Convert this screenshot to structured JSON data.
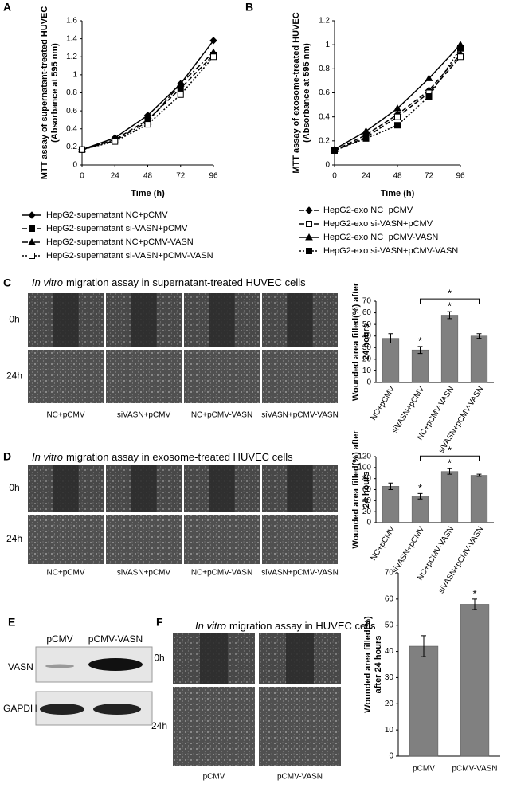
{
  "chart_data": [
    {
      "type": "line",
      "panel": "A",
      "xlabel": "Time (h)",
      "ylabel": [
        "MTT assay of supernatant-treated HUVEC",
        "(Absorbance at 595 nm)"
      ],
      "x": [
        0,
        24,
        48,
        72,
        96
      ],
      "xlim": [
        0,
        96
      ],
      "xticks": [
        0,
        24,
        48,
        72,
        96
      ],
      "ylim": [
        0,
        1.6
      ],
      "yticks": [
        0,
        0.2,
        0.4,
        0.6,
        0.8,
        1,
        1.2,
        1.4,
        1.6
      ],
      "series": [
        {
          "name": "HepG2-supernatant  NC+pCMV",
          "color": "#000000",
          "marker": "diamond",
          "line": "solid",
          "values": [
            0.17,
            0.3,
            0.55,
            0.9,
            1.38
          ]
        },
        {
          "name": "HepG2-supernatant  si-VASN+pCMV",
          "color": "#000000",
          "marker": "square",
          "line": "dashed",
          "values": [
            0.17,
            0.28,
            0.5,
            0.85,
            1.22
          ]
        },
        {
          "name": "HepG2-supernatant  NC+pCMV-VASN",
          "color": "#000000",
          "marker": "triangle",
          "line": "dashdot",
          "values": [
            0.17,
            0.27,
            0.48,
            0.9,
            1.25
          ]
        },
        {
          "name": "HepG2-supernatant  si-VASN+pCMV-VASN",
          "color": "#000000",
          "marker": "open-square",
          "line": "dotted",
          "values": [
            0.17,
            0.26,
            0.45,
            0.78,
            1.2
          ]
        }
      ]
    },
    {
      "type": "line",
      "panel": "B",
      "xlabel": "Time (h)",
      "ylabel": [
        "MTT assay of exosome-treated HUVEC",
        "(Absorbance at 595 nm)"
      ],
      "x": [
        0,
        24,
        48,
        72,
        96
      ],
      "xlim": [
        0,
        96
      ],
      "xticks": [
        0,
        24,
        48,
        72,
        96
      ],
      "ylim": [
        0,
        1.2
      ],
      "yticks": [
        0,
        0.2,
        0.4,
        0.6,
        0.8,
        1,
        1.2
      ],
      "series": [
        {
          "name": "HepG2-exo  NC+pCMV",
          "color": "#000000",
          "marker": "diamond",
          "line": "dashed",
          "values": [
            0.12,
            0.25,
            0.42,
            0.62,
            0.92
          ]
        },
        {
          "name": "HepG2-exo  si-VASN+pCMV",
          "color": "#000000",
          "marker": "open-square",
          "line": "dashed",
          "values": [
            0.12,
            0.23,
            0.4,
            0.6,
            0.9
          ]
        },
        {
          "name": "HepG2-exo  NC+pCMV-VASN",
          "color": "#000000",
          "marker": "triangle",
          "line": "solid",
          "values": [
            0.13,
            0.28,
            0.47,
            0.72,
            1.0
          ]
        },
        {
          "name": "HepG2-exo  si-VASN+pCMV-VASN",
          "color": "#000000",
          "marker": "square",
          "line": "dotted",
          "values": [
            0.12,
            0.22,
            0.33,
            0.57,
            0.97
          ]
        }
      ]
    },
    {
      "type": "bar",
      "ylabel": [
        "Wounded area filled(%) after",
        "24 hours"
      ],
      "color": "#808080",
      "categories": [
        "NC+pCMV",
        "siVASN+pCMV",
        "NC+pCMV-VASN",
        "siVASN+pCMV-VASN"
      ],
      "values": [
        38,
        28,
        58,
        40
      ],
      "errors": [
        4,
        3,
        3,
        2
      ],
      "ylim": [
        0,
        70
      ],
      "yticks": [
        0,
        10,
        20,
        30,
        40,
        50,
        60,
        70
      ],
      "annotations": [
        {
          "text": "*",
          "over": "siVASN+pCMV"
        },
        {
          "text": "*",
          "over": "NC+pCMV-VASN"
        },
        {
          "text": "*",
          "from": "siVASN+pCMV",
          "to": "siVASN+pCMV-VASN"
        }
      ]
    },
    {
      "type": "bar",
      "ylabel": [
        "Wounded area filled(%) after",
        "24 hours"
      ],
      "color": "#808080",
      "categories": [
        "NC+pCMV",
        "siVASN+pCMV",
        "NC+pCMV-VASN",
        "siVASN+pCMV-VASN"
      ],
      "values": [
        66,
        48,
        93,
        86
      ],
      "errors": [
        6,
        5,
        5,
        2
      ],
      "ylim": [
        0,
        120
      ],
      "yticks": [
        0,
        20,
        40,
        60,
        80,
        100,
        120
      ],
      "annotations": [
        {
          "text": "*",
          "over": "siVASN+pCMV"
        },
        {
          "text": "*",
          "over": "NC+pCMV-VASN"
        },
        {
          "text": "*",
          "from": "siVASN+pCMV",
          "to": "siVASN+pCMV-VASN"
        }
      ]
    },
    {
      "type": "bar",
      "ylabel": [
        "Wounded area filled(%)",
        "after 24 hours"
      ],
      "color": "#808080",
      "categories": [
        "pCMV",
        "pCMV-VASN"
      ],
      "values": [
        42,
        58
      ],
      "errors": [
        4,
        2
      ],
      "ylim": [
        0,
        70
      ],
      "yticks": [
        0,
        10,
        20,
        30,
        40,
        50,
        60,
        70
      ],
      "annotations": [
        {
          "text": "*",
          "over": "pCMV-VASN"
        }
      ]
    }
  ],
  "figure": {
    "C": {
      "label": "C",
      "title": [
        "In vitro",
        "migration assay in supernatant-treated HUVEC cells"
      ],
      "rows": [
        "0h",
        "24h"
      ],
      "columns": [
        "NC+pCMV",
        "siVASN+pCMV",
        "NC+pCMV-VASN",
        "siVASN+pCMV-VASN"
      ]
    },
    "D": {
      "label": "D",
      "title": [
        "In vitro",
        "migration assay in exosome-treated HUVEC cells"
      ],
      "rows": [
        "0h",
        "24h"
      ],
      "columns": [
        "NC+pCMV",
        "siVASN+pCMV",
        "NC+pCMV-VASN",
        "siVASN+pCMV-VASN"
      ]
    },
    "E": {
      "label": "E",
      "columns": [
        "pCMV",
        "pCMV-VASN"
      ],
      "rows": [
        "VASN",
        "GAPDH"
      ]
    },
    "F": {
      "label": "F",
      "title": [
        "In vitro",
        "migration assay in HUVEC cells"
      ],
      "rows": [
        "0h",
        "24h"
      ],
      "columns": [
        "pCMV",
        "pCMV-VASN"
      ]
    }
  }
}
